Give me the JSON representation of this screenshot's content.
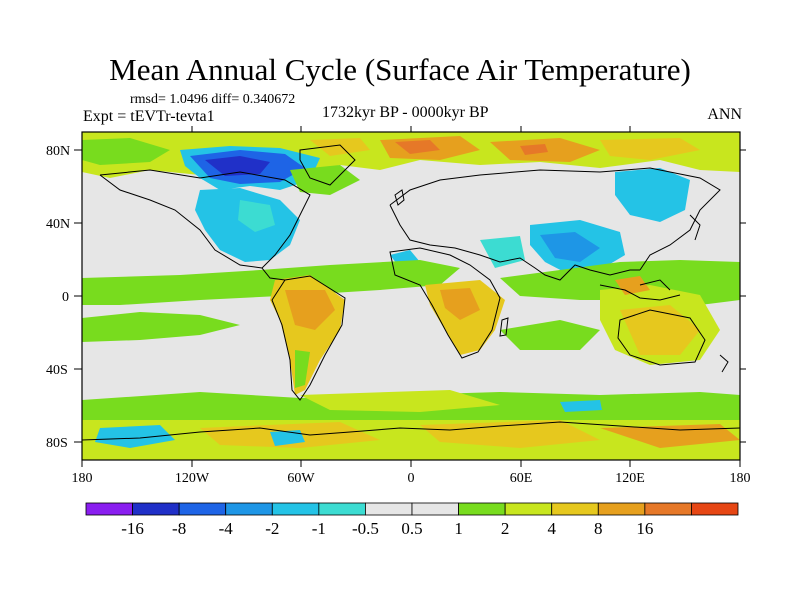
{
  "title": "Mean Annual Cycle (Surface Air Temperature)",
  "stats": "rmsd= 1.0496 diff= 0.340672",
  "experiment": "Expt = tEVTr-tevta1",
  "period": "1732kyr BP - 0000kyr BP",
  "season": "ANN",
  "lat_labels": [
    "80N",
    "40N",
    "0",
    "40S",
    "80S"
  ],
  "lon_labels": [
    "180",
    "120W",
    "60W",
    "0",
    "60E",
    "120E",
    "180"
  ],
  "colorbar": {
    "colors": [
      "#8a1ef0",
      "#2030c8",
      "#1e64e6",
      "#1e96e6",
      "#24c3e6",
      "#3cdcd2",
      "#e6e6e6",
      "#e6e6e6",
      "#78dc1e",
      "#c8e61e",
      "#e6c81e",
      "#e6a01e",
      "#e67828",
      "#e64614"
    ],
    "labels": [
      "-16",
      "-8",
      "-4",
      "-2",
      "-1",
      "-0.5",
      "0.5",
      "1",
      "2",
      "4",
      "8",
      "16"
    ]
  },
  "palette": {
    "ocean_neutral": "#e6e6e6",
    "green": "#78dc1e",
    "yellow_green": "#c8e61e",
    "orange": "#e6a01e",
    "dark_orange": "#e67828",
    "cyan": "#24c3e6",
    "blue": "#1e64e6",
    "dark_blue": "#2030c8",
    "coast": "#000000"
  }
}
